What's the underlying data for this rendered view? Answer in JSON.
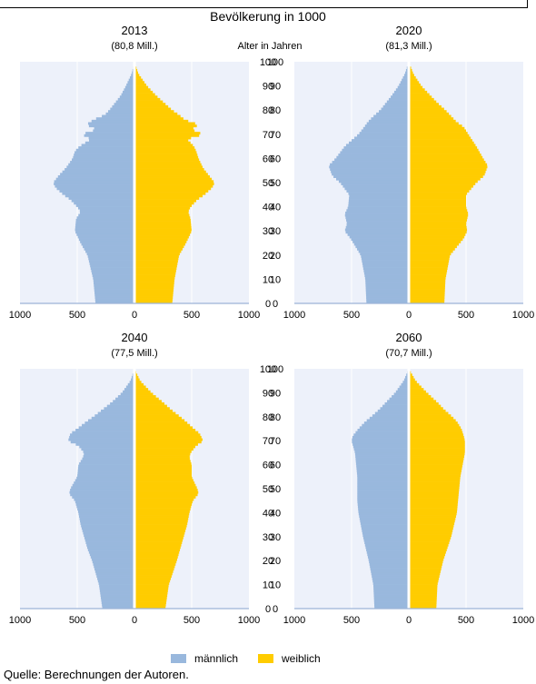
{
  "title": "Bevölkerung in 1000",
  "age_axis_title": "Alter in Jahren",
  "source": "Quelle: Berechnungen der Autoren.",
  "legend": {
    "male": {
      "label": "männlich",
      "color": "#99b8dd"
    },
    "female": {
      "label": "weiblich",
      "color": "#ffcc00"
    }
  },
  "chart_data": [
    {
      "type": "bar",
      "orientation": "population-pyramid",
      "title": "2013",
      "subtitle": "(80,8 Mill.)",
      "xlim": [
        -1000,
        1000
      ],
      "ylim": [
        0,
        100
      ],
      "x_ticks": [
        "1000",
        "500",
        "0",
        "500",
        "1000"
      ],
      "y_ticks": [
        "0",
        "10",
        "20",
        "30",
        "40",
        "50",
        "60",
        "70",
        "80",
        "90",
        "100"
      ],
      "age_knots": [
        0,
        10,
        20,
        25,
        30,
        35,
        38,
        40,
        43,
        45,
        48,
        50,
        53,
        56,
        60,
        63,
        65,
        68,
        70,
        72,
        74,
        76,
        78,
        80,
        83,
        86,
        90,
        95,
        100
      ],
      "series": [
        {
          "name": "männlich",
          "values": [
            340,
            360,
            410,
            470,
            520,
            510,
            470,
            500,
            560,
            620,
            690,
            710,
            660,
            600,
            540,
            520,
            480,
            380,
            460,
            330,
            420,
            360,
            260,
            220,
            170,
            120,
            75,
            25,
            0
          ]
        },
        {
          "name": "weiblich",
          "values": [
            330,
            350,
            390,
            450,
            500,
            490,
            470,
            490,
            550,
            610,
            680,
            700,
            650,
            600,
            560,
            540,
            520,
            460,
            600,
            500,
            560,
            440,
            390,
            330,
            260,
            190,
            110,
            35,
            0
          ]
        }
      ]
    },
    {
      "type": "bar",
      "orientation": "population-pyramid",
      "title": "2020",
      "subtitle": "(81,3 Mill.)",
      "xlim": [
        -1000,
        1000
      ],
      "ylim": [
        0,
        100
      ],
      "x_ticks": [
        "1000",
        "500",
        "0",
        "500",
        "1000"
      ],
      "y_ticks": [
        "0",
        "10",
        "20",
        "30",
        "40",
        "50",
        "60",
        "70",
        "80",
        "90",
        "100"
      ],
      "age_knots": [
        0,
        10,
        20,
        27,
        30,
        33,
        37,
        40,
        45,
        50,
        53,
        57,
        60,
        65,
        70,
        73,
        75,
        77,
        80,
        83,
        86,
        90,
        95,
        100
      ],
      "series": [
        {
          "name": "männlich",
          "values": [
            370,
            380,
            420,
            510,
            560,
            540,
            560,
            530,
            520,
            600,
            670,
            700,
            640,
            560,
            440,
            390,
            360,
            320,
            250,
            200,
            150,
            90,
            35,
            0
          ]
        },
        {
          "name": "weiblich",
          "values": [
            310,
            320,
            360,
            480,
            510,
            500,
            520,
            500,
            500,
            590,
            660,
            690,
            650,
            590,
            520,
            480,
            420,
            380,
            320,
            250,
            190,
            110,
            40,
            0
          ]
        }
      ]
    },
    {
      "type": "bar",
      "orientation": "population-pyramid",
      "title": "2040",
      "subtitle": "(77,5 Mill.)",
      "xlim": [
        -1000,
        1000
      ],
      "ylim": [
        0,
        100
      ],
      "x_ticks": [
        "1000",
        "500",
        "0",
        "500",
        "1000"
      ],
      "y_ticks": [
        "0",
        "10",
        "20",
        "30",
        "40",
        "50",
        "60",
        "70",
        "80",
        "90",
        "100"
      ],
      "age_knots": [
        0,
        10,
        20,
        25,
        30,
        35,
        40,
        45,
        48,
        50,
        55,
        60,
        63,
        65,
        68,
        70,
        73,
        75,
        78,
        80,
        83,
        86,
        90,
        95,
        100
      ],
      "series": [
        {
          "name": "männlich",
          "values": [
            280,
            310,
            370,
            410,
            440,
            470,
            490,
            520,
            570,
            560,
            500,
            490,
            450,
            440,
            490,
            580,
            560,
            500,
            420,
            360,
            280,
            200,
            110,
            35,
            0
          ]
        },
        {
          "name": "weiblich",
          "values": [
            270,
            300,
            370,
            400,
            430,
            460,
            480,
            510,
            560,
            550,
            500,
            500,
            480,
            490,
            540,
            600,
            570,
            520,
            450,
            400,
            320,
            250,
            150,
            50,
            0
          ]
        }
      ]
    },
    {
      "type": "bar",
      "orientation": "population-pyramid",
      "title": "2060",
      "subtitle": "(70,7 Mill.)",
      "xlim": [
        -1000,
        1000
      ],
      "ylim": [
        0,
        100
      ],
      "x_ticks": [
        "1000",
        "500",
        "0",
        "500",
        "1000"
      ],
      "y_ticks": [
        "0",
        "10",
        "20",
        "30",
        "40",
        "50",
        "60",
        "70",
        "80",
        "90",
        "100"
      ],
      "age_knots": [
        0,
        10,
        20,
        30,
        40,
        45,
        50,
        55,
        60,
        65,
        70,
        72,
        75,
        78,
        80,
        83,
        86,
        90,
        95,
        100
      ],
      "series": [
        {
          "name": "männlich",
          "values": [
            300,
            310,
            350,
            400,
            440,
            450,
            450,
            450,
            460,
            470,
            500,
            490,
            440,
            380,
            330,
            260,
            200,
            120,
            45,
            0
          ]
        },
        {
          "name": "weiblich",
          "values": [
            240,
            250,
            300,
            370,
            420,
            430,
            440,
            450,
            470,
            490,
            490,
            480,
            460,
            420,
            380,
            310,
            250,
            160,
            60,
            0
          ]
        }
      ]
    }
  ]
}
